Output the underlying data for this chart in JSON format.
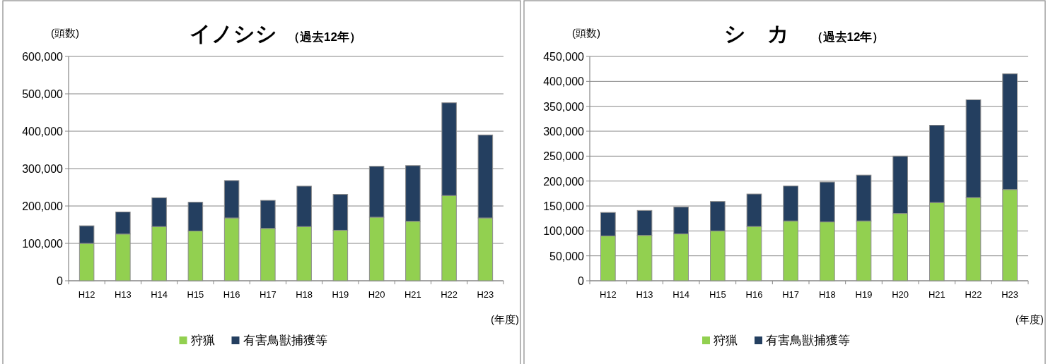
{
  "chart_data": [
    {
      "type": "bar",
      "stacked": true,
      "title": "イノシシ",
      "subtitle": "（過去12年）",
      "ylabel": "(頭数)",
      "xlabel": "(年度)",
      "categories": [
        "H12",
        "H13",
        "H14",
        "H15",
        "H16",
        "H17",
        "H18",
        "H19",
        "H20",
        "H21",
        "H22",
        "H23"
      ],
      "series": [
        {
          "name": "狩猟",
          "color": "#92d050",
          "values": [
            100000,
            125000,
            145000,
            133000,
            168000,
            140000,
            145000,
            135000,
            170000,
            159000,
            228000,
            168000
          ]
        },
        {
          "name": "有害鳥獣捕獲等",
          "color": "#243f60",
          "values": [
            47000,
            59000,
            77000,
            77000,
            100000,
            75000,
            108000,
            96000,
            136000,
            149000,
            248000,
            222000
          ]
        }
      ],
      "ylim": [
        0,
        600000
      ],
      "yticks": [
        0,
        {
          "value": 100000,
          "label": "100,000"
        },
        {
          "value": 200000,
          "label": "200,000"
        },
        {
          "value": 300000,
          "label": "300,000"
        },
        {
          "value": 400000,
          "label": "400,000"
        },
        {
          "value": 500000,
          "label": "500,000"
        },
        {
          "value": 600000,
          "label": "600,000"
        }
      ],
      "grid": "y",
      "legend": "bottom"
    },
    {
      "type": "bar",
      "stacked": true,
      "title": "シ　カ",
      "subtitle": "（過去12年）",
      "ylabel": "(頭数)",
      "xlabel": "(年度)",
      "categories": [
        "H12",
        "H13",
        "H14",
        "H15",
        "H16",
        "H17",
        "H18",
        "H19",
        "H20",
        "H21",
        "H22",
        "H23"
      ],
      "series": [
        {
          "name": "狩猟",
          "color": "#92d050",
          "values": [
            90000,
            91000,
            94000,
            100000,
            109000,
            120000,
            118000,
            120000,
            135000,
            157000,
            167000,
            183000
          ]
        },
        {
          "name": "有害鳥獣捕獲等",
          "color": "#243f60",
          "values": [
            47000,
            50000,
            54000,
            59000,
            65000,
            70000,
            80000,
            92000,
            115000,
            155000,
            196000,
            232000
          ]
        }
      ],
      "ylim": [
        0,
        450000
      ],
      "yticks": [
        0,
        {
          "value": 50000,
          "label": "50,000"
        },
        {
          "value": 100000,
          "label": "100,000"
        },
        {
          "value": 150000,
          "label": "150,000"
        },
        {
          "value": 200000,
          "label": "200,000"
        },
        {
          "value": 250000,
          "label": "250,000"
        },
        {
          "value": 300000,
          "label": "300,000"
        },
        {
          "value": 350000,
          "label": "350,000"
        },
        {
          "value": 400000,
          "label": "400,000"
        },
        {
          "value": 450000,
          "label": "450,000"
        }
      ],
      "grid": "y",
      "legend": "bottom"
    }
  ]
}
